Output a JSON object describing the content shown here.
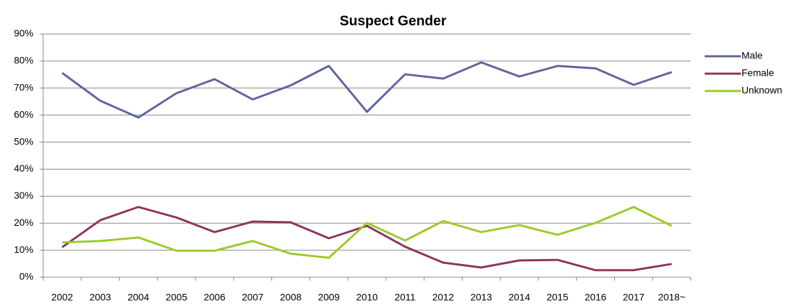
{
  "chart_data": {
    "type": "line",
    "title": "Suspect Gender",
    "categories": [
      "2002",
      "2003",
      "2004",
      "2005",
      "2006",
      "2007",
      "2008",
      "2009",
      "2010",
      "2011",
      "2012",
      "2013",
      "2014",
      "2015",
      "2016",
      "2017",
      "2018~"
    ],
    "series": [
      {
        "name": "Male",
        "color": "#5e649c",
        "values": [
          75.6,
          65.3,
          59.1,
          68.1,
          73.3,
          65.8,
          71,
          78.2,
          61.2,
          75.1,
          73.5,
          79.5,
          74.3,
          78.2,
          77.3,
          71.2,
          75.9
        ]
      },
      {
        "name": "Female",
        "color": "#8e3260",
        "values": [
          11.1,
          21.1,
          26,
          22.1,
          16.7,
          20.6,
          20.3,
          14.4,
          19,
          11.3,
          5.4,
          3.6,
          6.2,
          6.4,
          2.6,
          2.6,
          4.9
        ]
      },
      {
        "name": "Unknown",
        "color": "#9bcb28",
        "values": [
          12.9,
          13.4,
          14.7,
          9.8,
          9.8,
          13.4,
          8.7,
          7.2,
          20.1,
          13.6,
          20.8,
          16.7,
          19.3,
          15.7,
          20.1,
          26,
          19
        ]
      }
    ],
    "ylim": [
      0,
      90
    ],
    "yticks": [
      {
        "value": 0,
        "label": "0%"
      },
      {
        "value": 10,
        "label": "10%"
      },
      {
        "value": 20,
        "label": "20%"
      },
      {
        "value": 30,
        "label": "30%"
      },
      {
        "value": 40,
        "label": "40%"
      },
      {
        "value": 50,
        "label": "50%"
      },
      {
        "value": 60,
        "label": "60%"
      },
      {
        "value": 70,
        "label": "70%"
      },
      {
        "value": 80,
        "label": "80%"
      },
      {
        "value": 90,
        "label": "90%"
      }
    ],
    "grid": true,
    "legend": "right"
  }
}
